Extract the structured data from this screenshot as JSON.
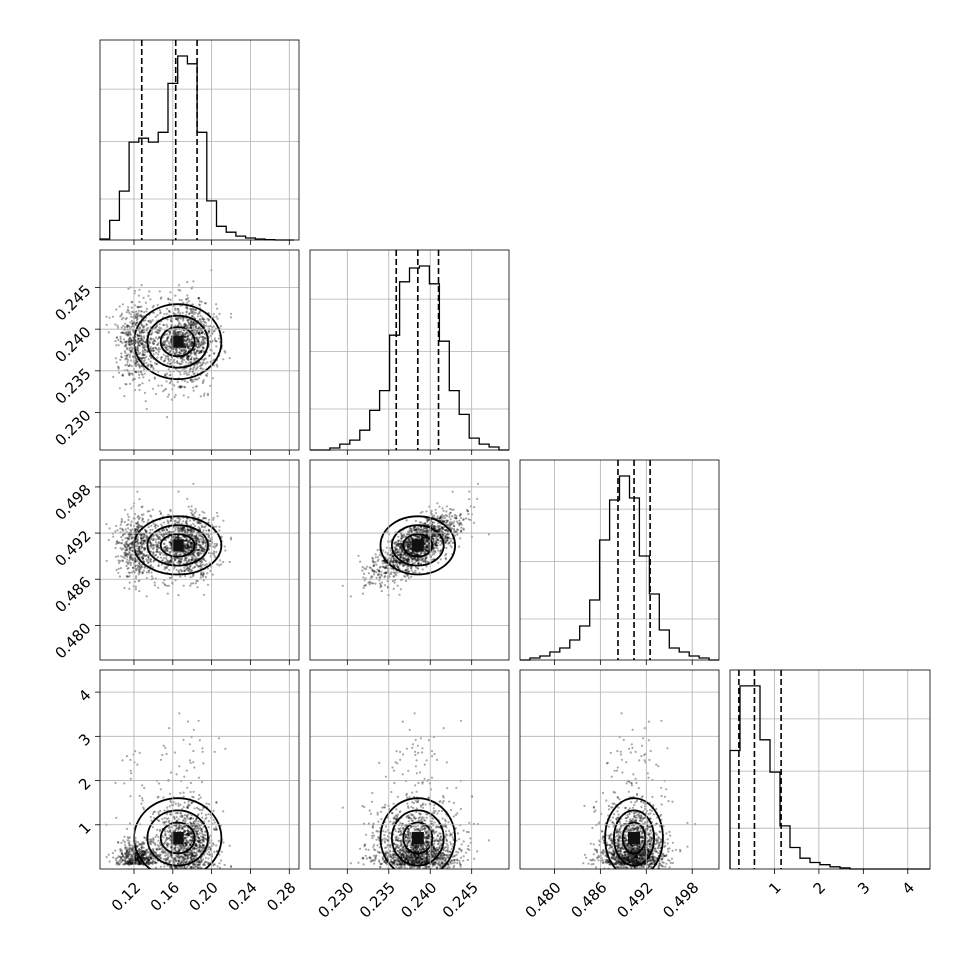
{
  "chart_data": {
    "type": "corner",
    "parameters": [
      {
        "ticks": [
          0.12,
          0.16,
          0.2,
          0.24,
          0.28
        ],
        "tick_labels": [
          "0.12",
          "0.16",
          "0.20",
          "0.24",
          "0.28"
        ],
        "range": [
          0.085,
          0.29
        ],
        "quantiles": [
          0.128,
          0.163,
          0.185
        ],
        "mean": 0.165,
        "sd": 0.025
      },
      {
        "ticks": [
          0.23,
          0.235,
          0.24,
          0.245
        ],
        "tick_labels": [
          "0.230",
          "0.235",
          "0.240",
          "0.245"
        ],
        "range": [
          0.2255,
          0.2495
        ],
        "quantiles": [
          0.2359,
          0.2385,
          0.241
        ],
        "mean": 0.2385,
        "sd": 0.0025
      },
      {
        "ticks": [
          0.48,
          0.486,
          0.492,
          0.498
        ],
        "tick_labels": [
          "0.480",
          "0.486",
          "0.492",
          "0.498"
        ],
        "range": [
          0.4755,
          0.5015
        ],
        "quantiles": [
          0.4883,
          0.4904,
          0.4925
        ],
        "mean": 0.4904,
        "sd": 0.0021
      },
      {
        "ticks": [
          1,
          2,
          3,
          4
        ],
        "tick_labels": [
          "1",
          "2",
          "3",
          "4"
        ],
        "range": [
          0.0,
          4.5
        ],
        "quantiles": [
          0.2,
          0.55,
          1.15
        ],
        "mean": 0.7,
        "sd": 0.5
      }
    ],
    "histograms": [
      {
        "edges": [
          0.085,
          0.095,
          0.105,
          0.115,
          0.125,
          0.135,
          0.145,
          0.155,
          0.165,
          0.175,
          0.185,
          0.195,
          0.205,
          0.215,
          0.225,
          0.235,
          0.245,
          0.255,
          0.265,
          0.275,
          0.285
        ],
        "counts": [
          0.005,
          0.1,
          0.25,
          0.5,
          0.52,
          0.5,
          0.55,
          0.8,
          0.94,
          0.9,
          0.55,
          0.2,
          0.07,
          0.04,
          0.02,
          0.01,
          0.005,
          0.002,
          0.0,
          0.0
        ]
      },
      {
        "edges": [
          0.2255,
          0.2267,
          0.2279,
          0.2291,
          0.2303,
          0.2315,
          0.2327,
          0.2339,
          0.2351,
          0.2363,
          0.2375,
          0.2387,
          0.2399,
          0.2411,
          0.2423,
          0.2435,
          0.2447,
          0.2459,
          0.2471,
          0.2483,
          0.2495
        ],
        "counts": [
          0.0,
          0.0,
          0.01,
          0.03,
          0.05,
          0.1,
          0.2,
          0.3,
          0.58,
          0.85,
          0.92,
          0.93,
          0.84,
          0.55,
          0.3,
          0.18,
          0.06,
          0.03,
          0.015,
          0.0
        ]
      },
      {
        "edges": [
          0.4755,
          0.4768,
          0.4781,
          0.4794,
          0.4807,
          0.482,
          0.4833,
          0.4846,
          0.4859,
          0.4872,
          0.4885,
          0.4898,
          0.4911,
          0.4924,
          0.4937,
          0.495,
          0.4963,
          0.4976,
          0.4989,
          0.5002,
          0.5015
        ],
        "counts": [
          0.0,
          0.01,
          0.02,
          0.04,
          0.06,
          0.1,
          0.17,
          0.3,
          0.6,
          0.8,
          0.92,
          0.81,
          0.52,
          0.33,
          0.15,
          0.06,
          0.04,
          0.02,
          0.01,
          0.0
        ]
      },
      {
        "edges": [
          0.0,
          0.225,
          0.45,
          0.675,
          0.9,
          1.125,
          1.35,
          1.575,
          1.8,
          2.025,
          2.25,
          2.475,
          2.7,
          2.925,
          3.15,
          3.375,
          3.6,
          3.825,
          4.05,
          4.275,
          4.5
        ],
        "counts": [
          0.55,
          0.85,
          0.85,
          0.6,
          0.45,
          0.2,
          0.1,
          0.05,
          0.03,
          0.02,
          0.01,
          0.005,
          0.0,
          0.0,
          0.0,
          0.0,
          0.0,
          0.0,
          0.0,
          0.0
        ]
      }
    ],
    "grid": true,
    "axis_labels": [],
    "title": ""
  }
}
